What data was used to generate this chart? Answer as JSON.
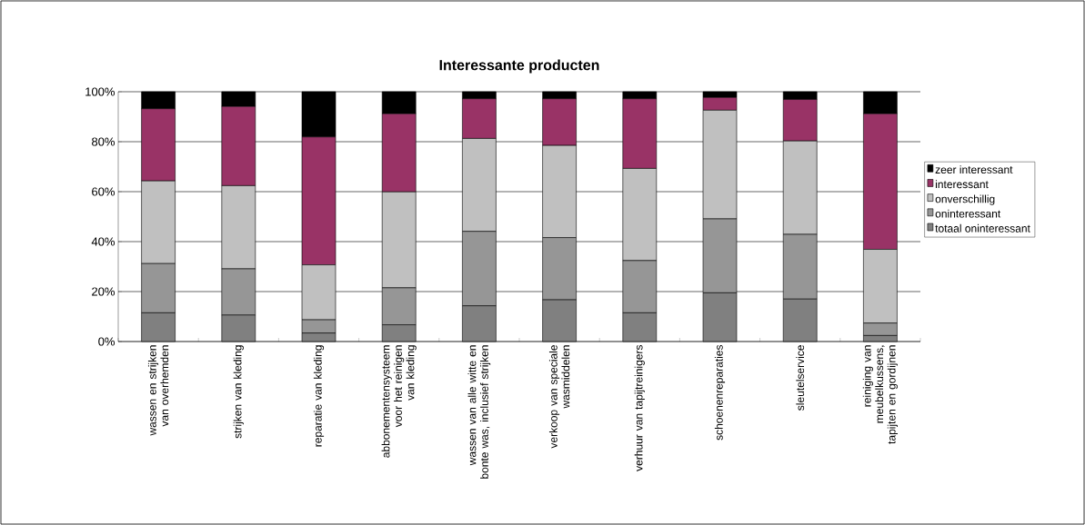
{
  "chart_data": {
    "type": "bar",
    "stacked": true,
    "title": "Interessante producten",
    "categories": [
      "wassen en strijken van overhemden",
      "strijken van kleding",
      "reparatie van kleding",
      "abbonementensysteem voor het reinigen van kleding",
      "wassen van alle witte en bonte was, inclusief strijken",
      "verkoop van speciale wasmiddelen",
      "verhuur van tapijtreinigers",
      "schoenenreparaties",
      "sleutelservice",
      "reiniging van meubelkussens, tapijten en gordijnen"
    ],
    "series": [
      {
        "name": "totaal oninteressant",
        "color": "#808080",
        "values": [
          11.5,
          10.6,
          3.4,
          6.7,
          14.3,
          16.7,
          11.5,
          19.5,
          17.0,
          2.4
        ]
      },
      {
        "name": "oninteressant",
        "color": "#969696",
        "values": [
          19.7,
          18.5,
          5.3,
          14.8,
          29.8,
          24.9,
          20.9,
          29.6,
          25.9,
          5.0
        ]
      },
      {
        "name": "onverschillig",
        "color": "#c0c0c0",
        "values": [
          33.1,
          33.3,
          22.0,
          38.4,
          37.2,
          36.9,
          36.9,
          43.5,
          37.4,
          29.5
        ]
      },
      {
        "name": "interessant",
        "color": "#993366",
        "values": [
          28.9,
          31.7,
          51.2,
          31.3,
          15.9,
          18.7,
          27.9,
          5.1,
          16.6,
          54.3
        ]
      },
      {
        "name": "zeer interessant",
        "color": "#000000",
        "values": [
          6.8,
          5.9,
          18.1,
          8.8,
          2.8,
          2.8,
          2.8,
          2.3,
          3.1,
          8.8
        ]
      }
    ],
    "ylim": [
      0,
      100
    ],
    "yticks": [
      {
        "value": 0,
        "label": "0%"
      },
      {
        "value": 20,
        "label": "20%"
      },
      {
        "value": 40,
        "label": "40%"
      },
      {
        "value": 60,
        "label": "60%"
      },
      {
        "value": 80,
        "label": "80%"
      },
      {
        "value": 100,
        "label": "100%"
      }
    ],
    "grid": "y",
    "legend": "right"
  }
}
